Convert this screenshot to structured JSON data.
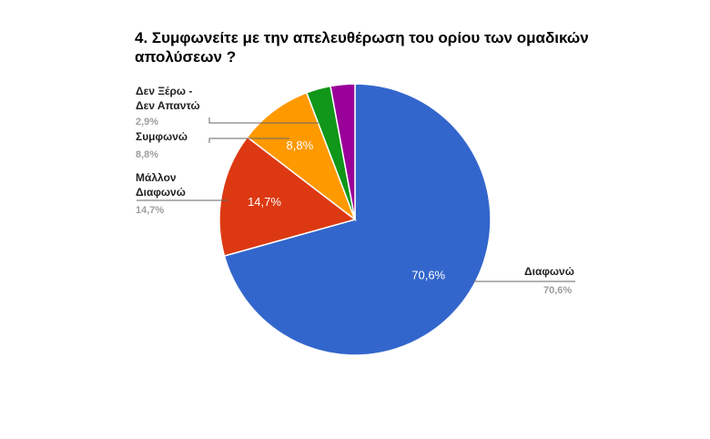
{
  "chart_data": {
    "type": "pie",
    "title": "4. Συμφωνείτε με την απελευθέρωση του ορίου των ομαδικών απολύσεων ?",
    "title_lines": [
      "4. Συμφωνείτε με την απελευθέρωση του ορίου των ομαδικών",
      "απολύσεων ?"
    ],
    "categories": [
      "Διαφωνώ",
      "Μάλλον Διαφωνώ",
      "Συμφωνώ",
      "Δεν Ξέρω - Δεν Απαντώ",
      ""
    ],
    "values": [
      70.6,
      14.7,
      8.8,
      2.9,
      2.9
    ],
    "colors": [
      "#3366cc",
      "#dc3912",
      "#ff9900",
      "#109618",
      "#990099"
    ],
    "slice_labels": [
      "70,6%",
      "14,7%",
      "8,8%",
      "",
      ""
    ],
    "legend_position": "labeled",
    "legend": [
      {
        "name_lines": [
          "Διαφωνώ"
        ],
        "value": "70,6%"
      },
      {
        "name_lines": [
          "Μάλλον",
          "Διαφωνώ"
        ],
        "value": "14,7%"
      },
      {
        "name_lines": [
          "Συμφωνώ"
        ],
        "value": "8,8%"
      },
      {
        "name_lines": [
          "Δεν Ξέρω -",
          "Δεν Απαντώ"
        ],
        "value": "2,9%"
      }
    ]
  }
}
